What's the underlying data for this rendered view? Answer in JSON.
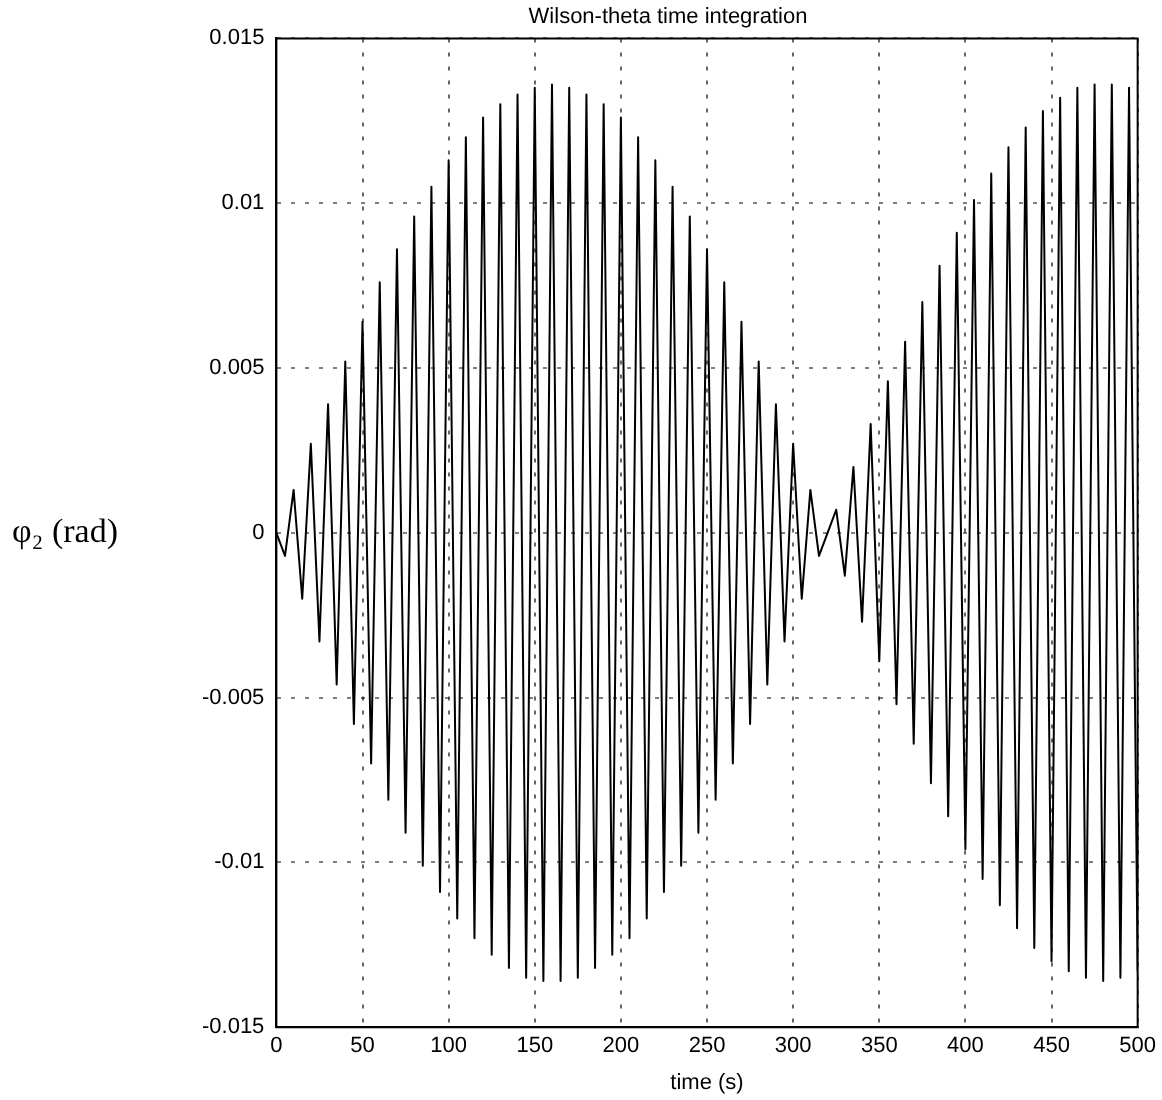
{
  "chart_data": {
    "type": "line",
    "title": "Wilson-theta time integration",
    "xlabel": "time (s)",
    "ylabel": "φ₂ (rad)",
    "xlim": [
      0,
      500
    ],
    "xticks": [
      0,
      50,
      100,
      150,
      200,
      250,
      300,
      350,
      400,
      450,
      500
    ],
    "ylim": [
      -0.015,
      0.015
    ],
    "yticks": [
      -0.015,
      -0.01,
      -0.005,
      0,
      0.005,
      0.01,
      0.015
    ],
    "grid": true,
    "legend": false,
    "marker": "none",
    "line_style": "solid",
    "series": [
      {
        "color": "#000000",
        "x": [
          0,
          5,
          10,
          15,
          20,
          25,
          30,
          35,
          40,
          45,
          50,
          55,
          60,
          65,
          70,
          75,
          80,
          85,
          90,
          95,
          100,
          105,
          110,
          115,
          120,
          125,
          130,
          135,
          140,
          145,
          150,
          155,
          160,
          165,
          170,
          175,
          180,
          185,
          190,
          195,
          200,
          205,
          210,
          215,
          220,
          225,
          230,
          235,
          240,
          245,
          250,
          255,
          260,
          265,
          270,
          275,
          280,
          285,
          290,
          295,
          300,
          305,
          310,
          315,
          320,
          325,
          330,
          335,
          340,
          345,
          350,
          355,
          360,
          365,
          370,
          375,
          380,
          385,
          390,
          395,
          400,
          405,
          410,
          415,
          420,
          425,
          430,
          435,
          440,
          445,
          450,
          455,
          460,
          465,
          470,
          475,
          480,
          485,
          490,
          495,
          500
        ],
        "values": [
          0,
          -0.0007,
          0.0013,
          -0.002,
          0.0027,
          -0.0033,
          0.0039,
          -0.0046,
          0.0052,
          -0.0058,
          0.0064,
          -0.007,
          0.0076,
          -0.0081,
          0.0086,
          -0.0091,
          0.0096,
          -0.0101,
          0.0105,
          -0.0109,
          0.0113,
          -0.0117,
          0.012,
          -0.0123,
          0.0126,
          -0.0128,
          0.013,
          -0.0132,
          0.0133,
          -0.0135,
          0.0135,
          -0.0136,
          0.0136,
          -0.0136,
          0.0135,
          -0.0135,
          0.0133,
          -0.0132,
          0.013,
          -0.0128,
          0.0126,
          -0.0123,
          0.012,
          -0.0117,
          0.0113,
          -0.0109,
          0.0105,
          -0.0101,
          0.0096,
          -0.0091,
          0.0086,
          -0.0081,
          0.0076,
          -0.007,
          0.0064,
          -0.0058,
          0.0052,
          -0.0046,
          0.0039,
          -0.0033,
          0.0027,
          -0.002,
          0.0013,
          -0.0007,
          0,
          0.0007,
          -0.0013,
          0.002,
          -0.0027,
          0.0033,
          -0.0039,
          0.0046,
          -0.0052,
          0.0058,
          -0.0064,
          0.007,
          -0.0076,
          0.0081,
          -0.0086,
          0.0091,
          -0.0096,
          0.0101,
          -0.0105,
          0.0109,
          -0.0113,
          0.0117,
          -0.012,
          0.0123,
          -0.0126,
          0.0128,
          -0.013,
          0.0132,
          -0.0133,
          0.0135,
          -0.0135,
          0.0136,
          -0.0136,
          0.0136,
          -0.0135,
          0.0135,
          -0.0133
        ]
      }
    ]
  }
}
